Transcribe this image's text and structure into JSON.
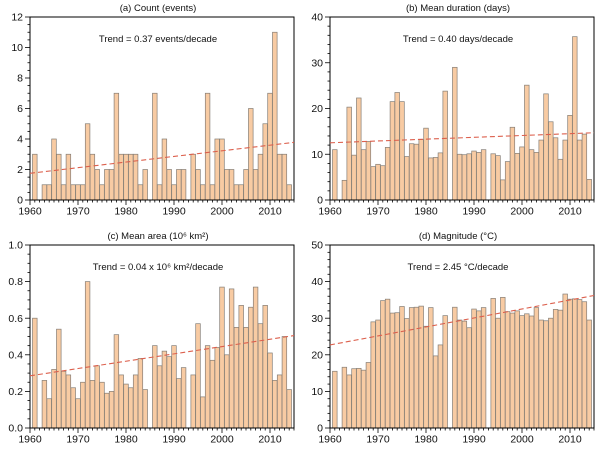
{
  "figure": {
    "colors": {
      "background": "#ffffff",
      "bar_fill": "#F8CBA3",
      "bar_stroke": "#857E76",
      "trend_line": "#DC604D",
      "axis": "#000000",
      "text": "#111111"
    }
  },
  "chart_data": {
    "type": "bar",
    "x_years": [
      1961,
      1962,
      1963,
      1964,
      1965,
      1966,
      1967,
      1968,
      1969,
      1970,
      1971,
      1972,
      1973,
      1974,
      1975,
      1976,
      1977,
      1978,
      1979,
      1980,
      1981,
      1982,
      1983,
      1984,
      1985,
      1986,
      1987,
      1988,
      1989,
      1990,
      1991,
      1992,
      1993,
      1994,
      1995,
      1996,
      1997,
      1998,
      1999,
      2000,
      2001,
      2002,
      2003,
      2004,
      2005,
      2006,
      2007,
      2008,
      2009,
      2010,
      2011,
      2012,
      2013,
      2014
    ],
    "x_axis": {
      "start": 1960,
      "end": 2015,
      "major_ticks": [
        1960,
        1970,
        1980,
        1990,
        2000,
        2010
      ],
      "minor_step_years": 1
    },
    "gap_years_zero_value": [
      1962,
      1985,
      1993
    ],
    "legend": "none",
    "grid": "off",
    "panels": [
      {
        "id": "a",
        "title": "(a) Count (events)",
        "trend_label": "Trend =  0.37 events/decade",
        "trend_per_decade": 0.37,
        "ylim": [
          0,
          12
        ],
        "ytick_values": [
          0,
          2,
          4,
          6,
          8,
          10,
          12
        ],
        "ytick_labels": [
          "0",
          "2",
          "4",
          "6",
          "8",
          "10",
          "12"
        ],
        "y_minor_step": 0.5,
        "trend_line_y": {
          "y1960": 1.75,
          "y2015": 3.78
        },
        "values": [
          3,
          0,
          1,
          1,
          4,
          3,
          1,
          3,
          1,
          1,
          1,
          5,
          3,
          2,
          1,
          2,
          2,
          7,
          3,
          3,
          3,
          3,
          1,
          2,
          0,
          7,
          1,
          4,
          2,
          1,
          2,
          2,
          0,
          3,
          2,
          1,
          7,
          1,
          4,
          4,
          2,
          2,
          1,
          1,
          2,
          6,
          2,
          3,
          5,
          7,
          11,
          3,
          3,
          1
        ]
      },
      {
        "id": "b",
        "title": "(b) Mean duration (days)",
        "trend_label": "Trend =  0.40 days/decade",
        "trend_per_decade": 0.4,
        "ylim": [
          0,
          40
        ],
        "ytick_values": [
          0,
          10,
          20,
          30,
          40
        ],
        "ytick_labels": [
          "0",
          "10",
          "20",
          "30",
          "40"
        ],
        "y_minor_step": 2,
        "trend_line_y": {
          "y1960": 12.5,
          "y2015": 14.7
        },
        "values": [
          11,
          0,
          4.3,
          20.3,
          9.8,
          22.3,
          11,
          12.8,
          7.3,
          7.8,
          7.5,
          11.5,
          21.5,
          23.5,
          21.5,
          9.5,
          12.3,
          12.2,
          13.2,
          15.7,
          9.2,
          9.3,
          10.3,
          23.8,
          0,
          29,
          10,
          9.9,
          10.1,
          10.7,
          10.4,
          11,
          0,
          10.1,
          9.7,
          4.4,
          8.4,
          15.9,
          10.2,
          11.6,
          25.1,
          11,
          10.4,
          13.1,
          23.2,
          17.1,
          13.6,
          8.9,
          13.1,
          18.5,
          35.7,
          13.1,
          14.4,
          4.5
        ]
      },
      {
        "id": "c",
        "title": "(c) Mean area (10⁶ km²)",
        "trend_label": "Trend =  0.04 x 10⁶ km²/decade",
        "trend_per_decade": 0.04,
        "ylim": [
          0,
          1.0
        ],
        "ytick_values": [
          0,
          0.2,
          0.4,
          0.6,
          0.8,
          1.0
        ],
        "ytick_labels": [
          "0.0",
          "0.2",
          "0.4",
          "0.6",
          "0.8",
          "1.0"
        ],
        "y_minor_step": 0.05,
        "trend_line_y": {
          "y1960": 0.285,
          "y2015": 0.505
        },
        "values": [
          0.6,
          0,
          0.26,
          0.16,
          0.32,
          0.54,
          0.31,
          0.29,
          0.22,
          0.16,
          0.25,
          0.8,
          0.26,
          0.34,
          0.25,
          0.19,
          0.2,
          0.51,
          0.29,
          0.24,
          0.22,
          0.29,
          0.38,
          0.21,
          0,
          0.45,
          0.34,
          0.42,
          0.39,
          0.45,
          0.27,
          0.33,
          0,
          0.29,
          0.57,
          0.17,
          0.45,
          0.37,
          0.44,
          0.77,
          0.4,
          0.76,
          0.55,
          0.67,
          0.55,
          0.66,
          0.77,
          0.57,
          0.67,
          0.41,
          0.26,
          0.29,
          0.5,
          0.21
        ]
      },
      {
        "id": "d",
        "title": "(d) Magnitude (°C)",
        "trend_label": "Trend =  2.45 °C/decade",
        "trend_per_decade": 2.45,
        "ylim": [
          0,
          50
        ],
        "ytick_values": [
          0,
          10,
          20,
          30,
          40,
          50
        ],
        "ytick_labels": [
          "0",
          "10",
          "20",
          "30",
          "40",
          "50"
        ],
        "y_minor_step": 2,
        "trend_line_y": {
          "y1960": 22.7,
          "y2015": 36.2
        },
        "values": [
          15.5,
          0,
          16.6,
          14.5,
          16.2,
          16.3,
          15.8,
          17.9,
          29,
          29.5,
          34.8,
          35.2,
          31.4,
          31.5,
          33.2,
          29.9,
          32.9,
          33,
          33.3,
          27.8,
          32.9,
          19.7,
          22.7,
          30.7,
          0,
          33,
          29.5,
          29.2,
          27.4,
          32.5,
          32,
          32.9,
          0,
          35.4,
          30,
          35.7,
          31.8,
          31.4,
          32,
          30.7,
          31.2,
          30.6,
          32.9,
          29.5,
          29.3,
          30,
          32.4,
          32.2,
          36.6,
          35.2,
          35.3,
          35.1,
          34.5,
          29.5
        ]
      }
    ]
  }
}
